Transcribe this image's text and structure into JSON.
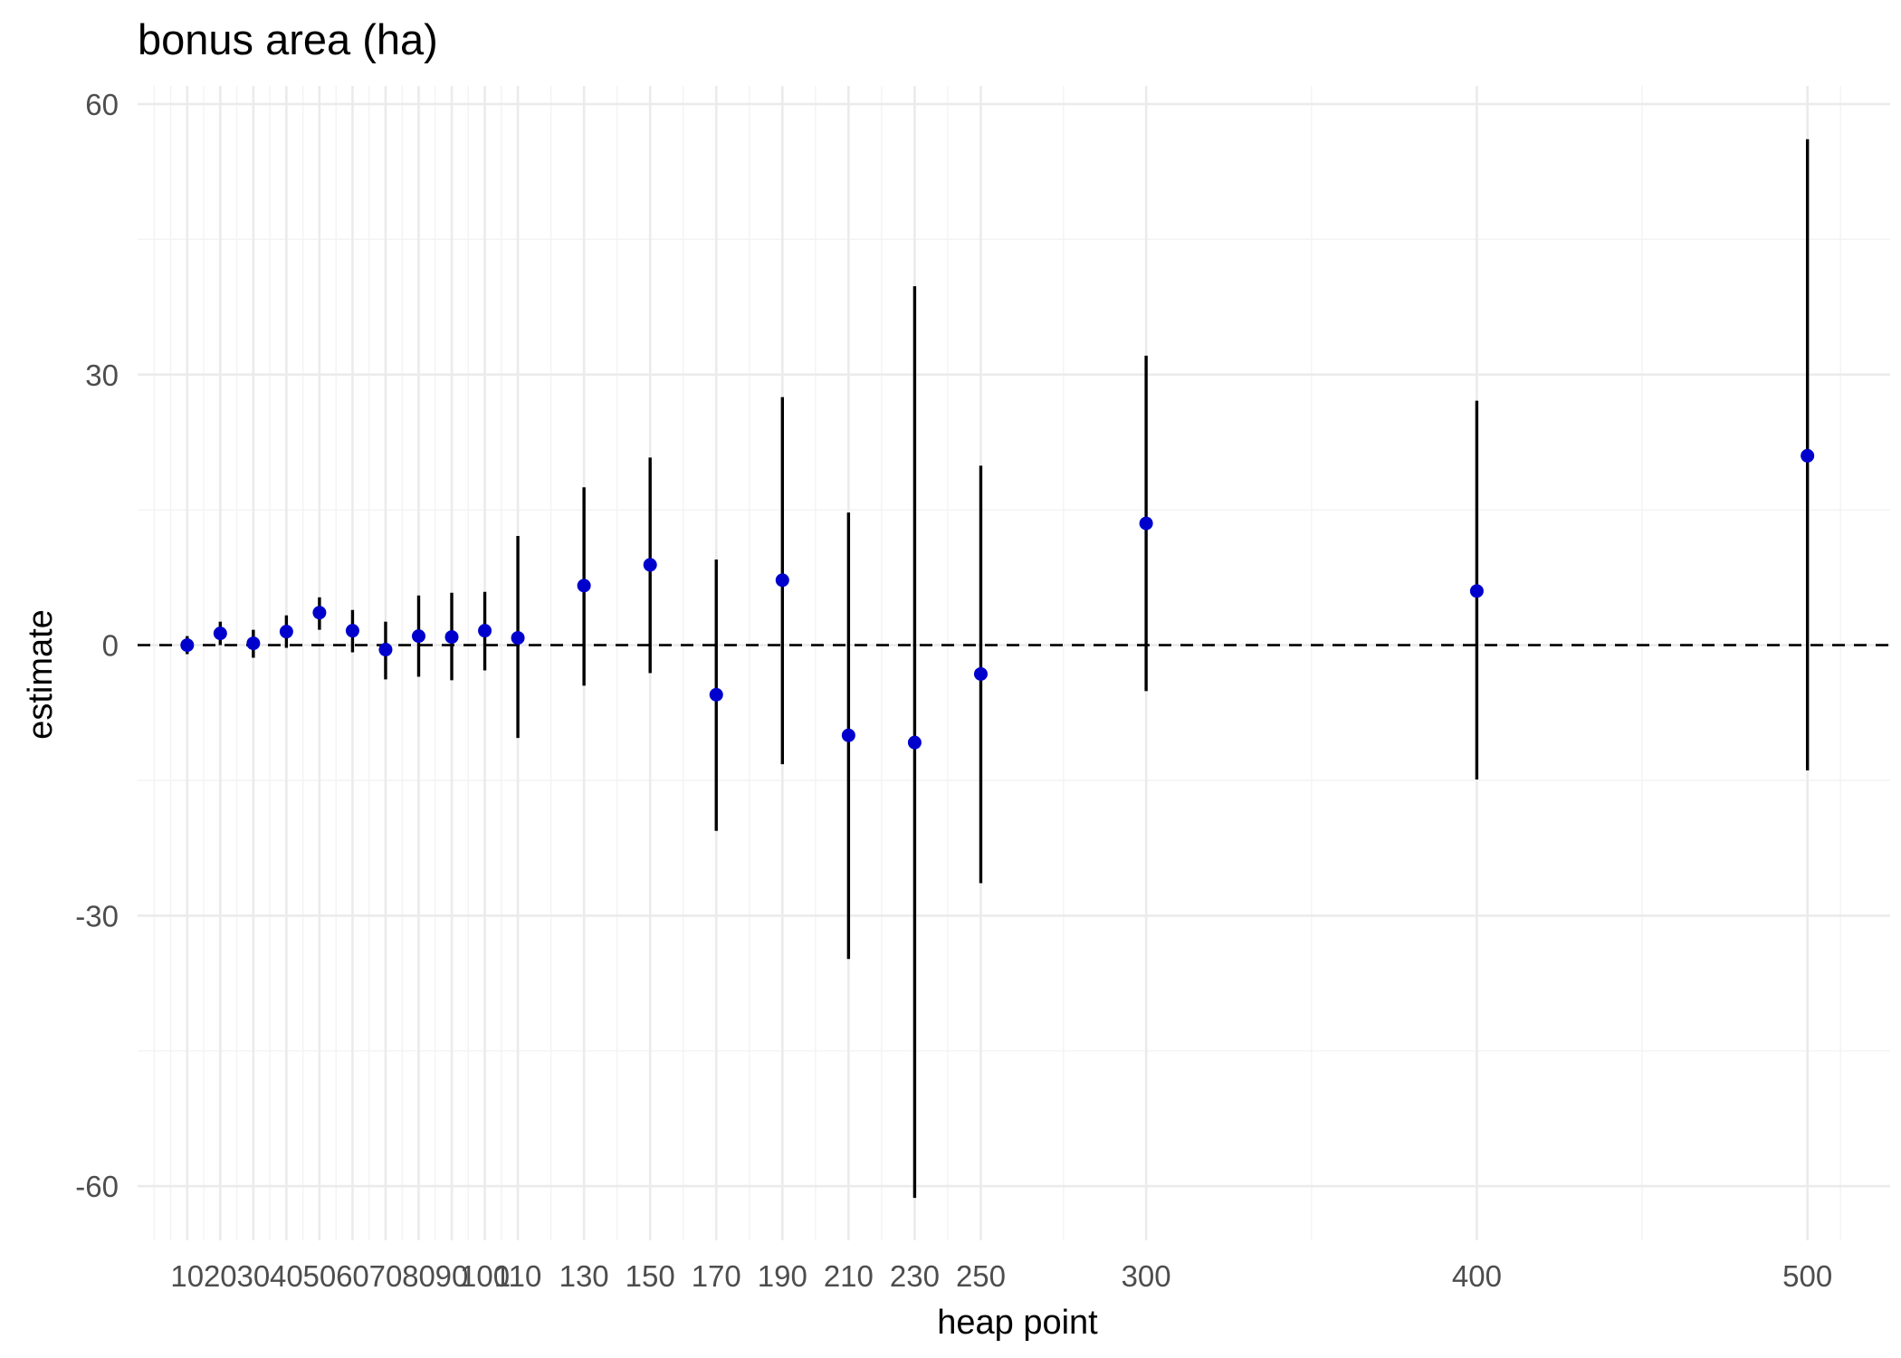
{
  "chart_data": {
    "type": "scatter",
    "title": "bonus area (ha)",
    "xlabel": "heap point",
    "ylabel": "estimate",
    "xlim": [
      -5,
      525
    ],
    "ylim": [
      -66,
      62
    ],
    "xticks": [
      10,
      20,
      30,
      40,
      50,
      60,
      70,
      80,
      90,
      100,
      110,
      130,
      150,
      170,
      190,
      210,
      230,
      250,
      300,
      400,
      500
    ],
    "xminor": [
      0,
      5,
      15,
      25,
      35,
      45,
      55,
      65,
      75,
      85,
      95,
      105,
      120,
      140,
      160,
      180,
      200,
      220,
      240,
      275,
      350,
      450,
      510
    ],
    "yticks": [
      60,
      30,
      0,
      -30,
      -60
    ],
    "yminor": [
      45,
      15,
      -15,
      -45
    ],
    "reference_line": {
      "y": 0,
      "style": "dashed"
    },
    "grid": true,
    "legend": "none",
    "point_color": "#0000cd",
    "bar_color": "#000000",
    "points": [
      {
        "x": 10,
        "estimate": 0.0,
        "lower": -1.0,
        "upper": 1.0
      },
      {
        "x": 20,
        "estimate": 1.3,
        "lower": 0.0,
        "upper": 2.6
      },
      {
        "x": 30,
        "estimate": 0.2,
        "lower": -1.4,
        "upper": 1.7
      },
      {
        "x": 40,
        "estimate": 1.5,
        "lower": -0.3,
        "upper": 3.3
      },
      {
        "x": 50,
        "estimate": 3.6,
        "lower": 1.7,
        "upper": 5.3
      },
      {
        "x": 60,
        "estimate": 1.6,
        "lower": -0.8,
        "upper": 3.9
      },
      {
        "x": 70,
        "estimate": -0.5,
        "lower": -3.8,
        "upper": 2.6
      },
      {
        "x": 80,
        "estimate": 1.0,
        "lower": -3.5,
        "upper": 5.5
      },
      {
        "x": 90,
        "estimate": 0.9,
        "lower": -3.9,
        "upper": 5.8
      },
      {
        "x": 100,
        "estimate": 1.6,
        "lower": -2.8,
        "upper": 5.9
      },
      {
        "x": 110,
        "estimate": 0.8,
        "lower": -10.3,
        "upper": 12.1
      },
      {
        "x": 130,
        "estimate": 6.6,
        "lower": -4.5,
        "upper": 17.5
      },
      {
        "x": 150,
        "estimate": 8.9,
        "lower": -3.1,
        "upper": 20.8
      },
      {
        "x": 170,
        "estimate": -5.5,
        "lower": -20.6,
        "upper": 9.5
      },
      {
        "x": 190,
        "estimate": 7.2,
        "lower": -13.2,
        "upper": 27.5
      },
      {
        "x": 210,
        "estimate": -10.0,
        "lower": -34.8,
        "upper": 14.7
      },
      {
        "x": 230,
        "estimate": -10.8,
        "lower": -61.3,
        "upper": 39.8
      },
      {
        "x": 250,
        "estimate": -3.2,
        "lower": -26.4,
        "upper": 19.9
      },
      {
        "x": 300,
        "estimate": 13.5,
        "lower": -5.1,
        "upper": 32.1
      },
      {
        "x": 400,
        "estimate": 6.0,
        "lower": -14.9,
        "upper": 27.1
      },
      {
        "x": 500,
        "estimate": 21.0,
        "lower": -13.9,
        "upper": 56.1
      }
    ]
  }
}
